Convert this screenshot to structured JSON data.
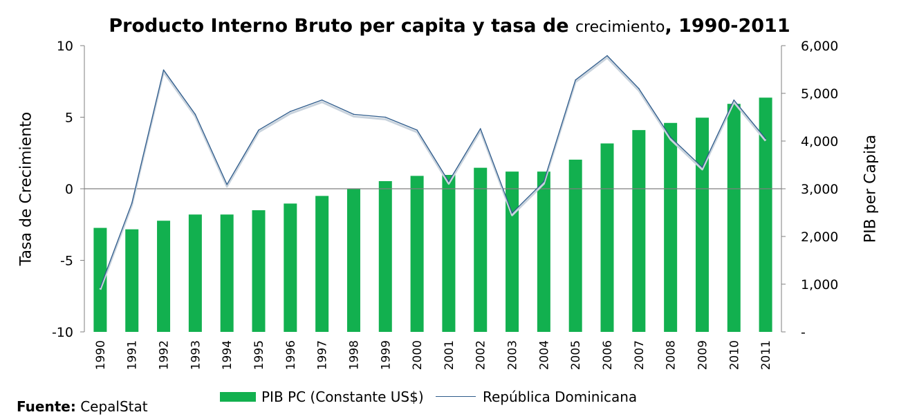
{
  "chart_data": {
    "type": "bar",
    "title": "Producto Interno Bruto per capita y tasa de",
    "title_small": "crecimiento",
    "title_end": ", 1990-2011",
    "ylabel_left": "Tasa de Crecimiento",
    "ylabel_right": "PIB per Capita",
    "categories": [
      "1990",
      "1991",
      "1992",
      "1993",
      "1994",
      "1995",
      "1996",
      "1997",
      "1998",
      "1999",
      "2000",
      "2001",
      "2002",
      "2003",
      "2004",
      "2005",
      "2006",
      "2007",
      "2008",
      "2009",
      "2010",
      "2011"
    ],
    "series": [
      {
        "name": "PIB PC (Constante  US$)",
        "type": "bar",
        "axis": "right",
        "color": "#12b04f",
        "values": [
          2180,
          2150,
          2330,
          2460,
          2460,
          2550,
          2690,
          2850,
          3000,
          3160,
          3270,
          3290,
          3440,
          3360,
          3360,
          3610,
          3950,
          4230,
          4380,
          4490,
          4780,
          4910
        ]
      },
      {
        "name": "República Dominicana",
        "type": "line",
        "axis": "left",
        "color": "#2e5b8b",
        "values": [
          -6.9,
          -1.0,
          8.3,
          5.2,
          0.3,
          4.1,
          5.4,
          6.2,
          5.2,
          5.0,
          4.1,
          0.5,
          4.2,
          -1.7,
          0.5,
          7.6,
          9.3,
          7.0,
          3.6,
          1.5,
          6.2,
          3.5
        ]
      }
    ],
    "y_left": {
      "min": -10,
      "max": 10,
      "ticks": [
        10,
        5,
        0,
        -5,
        -10
      ]
    },
    "y_right": {
      "min": 0,
      "max": 6000,
      "ticks": [
        6000,
        5000,
        4000,
        3000,
        2000,
        1000,
        0
      ],
      "tick_labels": [
        "6,000",
        "5,000",
        "4,000",
        "3,000",
        "2,000",
        "1,000",
        "-"
      ]
    },
    "grid": false,
    "legend": "bottom"
  },
  "source": {
    "label": "Fuente:",
    "text": "CepalStat"
  }
}
